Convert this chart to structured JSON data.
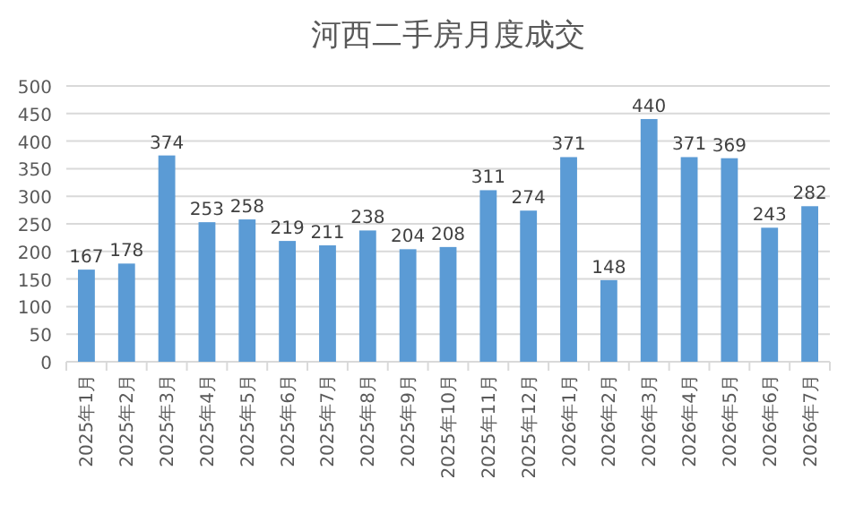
{
  "chart_data": {
    "type": "bar",
    "title": "河西二手房月度成交",
    "categories": [
      "2025年1月",
      "2025年2月",
      "2025年3月",
      "2025年4月",
      "2025年5月",
      "2025年6月",
      "2025年7月",
      "2025年8月",
      "2025年9月",
      "2025年10月",
      "2025年11月",
      "2025年12月",
      "2026年1月",
      "2026年2月",
      "2026年3月",
      "2026年4月",
      "2026年5月",
      "2026年6月",
      "2026年7月"
    ],
    "values": [
      167,
      178,
      374,
      253,
      258,
      219,
      211,
      238,
      204,
      208,
      311,
      274,
      371,
      148,
      440,
      371,
      369,
      243,
      282
    ],
    "color": "#5b9bd5",
    "ylim": [
      0,
      500
    ],
    "yticks": [
      0,
      50,
      100,
      150,
      200,
      250,
      300,
      350,
      400,
      450,
      500
    ],
    "grid": "y",
    "data_labels": true
  }
}
